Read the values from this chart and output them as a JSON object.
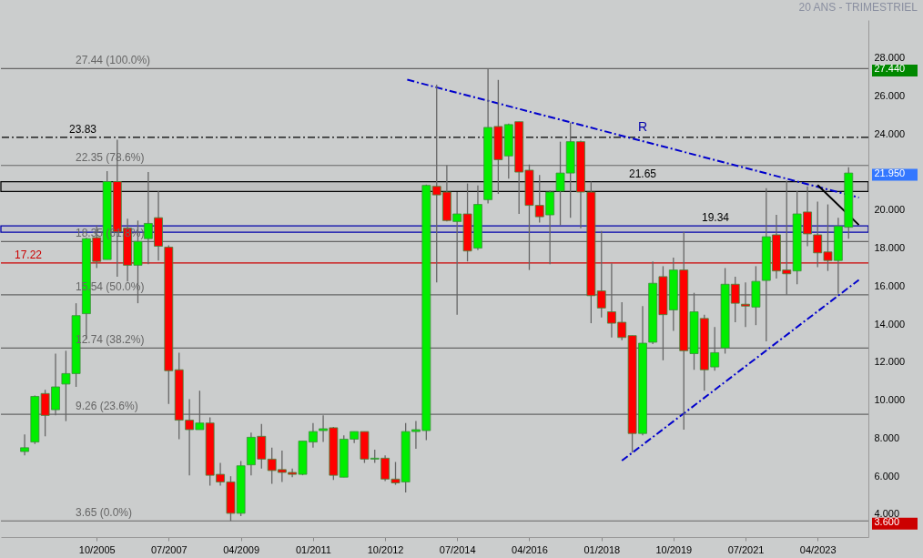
{
  "chart_data": {
    "type": "candlestick",
    "subtitle": "20 ANS - TRIMESTRIEL",
    "x": [
      "2004-01",
      "2004-04",
      "2004-07",
      "2004-10",
      "2005-01",
      "2005-04",
      "2005-07",
      "2005-10",
      "2006-01",
      "2006-04",
      "2006-07",
      "2006-10",
      "2007-01",
      "2007-04",
      "2007-07",
      "2007-10",
      "2008-01",
      "2008-04",
      "2008-07",
      "2008-10",
      "2009-01",
      "2009-04",
      "2009-07",
      "2009-10",
      "2010-01",
      "2010-04",
      "2010-07",
      "2010-10",
      "2011-01",
      "2011-04",
      "2011-07",
      "2011-10",
      "2012-01",
      "2012-04",
      "2012-07",
      "2012-10",
      "2013-01",
      "2013-04",
      "2013-07",
      "2013-10",
      "2014-01",
      "2014-04",
      "2014-07",
      "2014-10",
      "2015-01",
      "2015-04",
      "2015-07",
      "2015-10",
      "2016-01",
      "2016-04",
      "2016-07",
      "2016-10",
      "2017-01",
      "2017-04",
      "2017-07",
      "2017-10",
      "2018-01",
      "2018-04",
      "2018-07",
      "2018-10",
      "2019-01",
      "2019-04",
      "2019-07",
      "2019-10",
      "2020-01",
      "2020-04",
      "2020-07",
      "2020-10",
      "2021-01",
      "2021-04",
      "2021-07",
      "2021-10",
      "2022-01",
      "2022-04",
      "2022-07",
      "2022-10",
      "2023-01",
      "2023-04",
      "2023-07",
      "2023-10",
      "2024-01"
    ],
    "ohlc": [
      [
        7.3,
        8.2,
        7.1,
        7.5
      ],
      [
        7.8,
        10.25,
        7.7,
        10.2
      ],
      [
        10.35,
        10.55,
        8.1,
        9.2
      ],
      [
        9.5,
        12.45,
        9.2,
        10.7
      ],
      [
        10.85,
        12.6,
        8.9,
        11.4
      ],
      [
        11.4,
        15.1,
        10.7,
        14.45
      ],
      [
        14.55,
        18.55,
        13.2,
        18.5
      ],
      [
        18.55,
        19.2,
        16.95,
        17.3
      ],
      [
        17.4,
        22.05,
        17.4,
        21.5
      ],
      [
        21.5,
        23.7,
        16.5,
        18.85
      ],
      [
        19.05,
        19.55,
        16.25,
        17.1
      ],
      [
        17.1,
        19.45,
        15.1,
        18.35
      ],
      [
        18.5,
        22.0,
        17.15,
        19.3
      ],
      [
        19.6,
        21.0,
        17.35,
        18.1
      ],
      [
        18.05,
        18.15,
        9.8,
        11.55
      ],
      [
        11.6,
        12.5,
        7.95,
        8.95
      ],
      [
        8.95,
        10.05,
        6.05,
        8.45
      ],
      [
        8.45,
        10.5,
        8.45,
        8.8
      ],
      [
        8.8,
        9.1,
        5.5,
        6.05
      ],
      [
        6.1,
        6.7,
        5.5,
        5.7
      ],
      [
        5.7,
        6.0,
        3.65,
        4.05
      ],
      [
        4.05,
        6.8,
        3.9,
        6.55
      ],
      [
        6.6,
        8.3,
        6.05,
        8.05
      ],
      [
        8.1,
        8.75,
        6.4,
        6.9
      ],
      [
        6.9,
        7.5,
        5.6,
        6.3
      ],
      [
        6.35,
        7.35,
        5.7,
        6.2
      ],
      [
        6.2,
        6.4,
        5.95,
        6.1
      ],
      [
        6.1,
        7.85,
        6.05,
        7.85
      ],
      [
        7.8,
        8.8,
        7.5,
        8.35
      ],
      [
        8.4,
        9.2,
        7.8,
        8.5
      ],
      [
        8.55,
        8.6,
        5.8,
        6.05
      ],
      [
        5.95,
        8.15,
        5.95,
        7.95
      ],
      [
        7.95,
        8.35,
        7.75,
        8.35
      ],
      [
        8.35,
        8.35,
        6.7,
        6.9
      ],
      [
        6.9,
        7.4,
        6.7,
        6.95
      ],
      [
        6.95,
        7.1,
        5.75,
        5.85
      ],
      [
        5.85,
        6.75,
        5.55,
        5.65
      ],
      [
        5.7,
        8.8,
        5.15,
        8.35
      ],
      [
        8.35,
        8.9,
        7.45,
        8.45
      ],
      [
        8.4,
        21.35,
        7.9,
        21.3
      ],
      [
        21.25,
        26.6,
        16.2,
        20.8
      ],
      [
        20.95,
        22.35,
        19.4,
        19.45
      ],
      [
        19.4,
        20.95,
        14.5,
        19.8
      ],
      [
        19.8,
        21.4,
        17.3,
        17.85
      ],
      [
        18.0,
        21.3,
        17.9,
        20.3
      ],
      [
        20.55,
        27.44,
        20.35,
        24.35
      ],
      [
        24.4,
        26.85,
        20.85,
        22.65
      ],
      [
        22.85,
        24.55,
        21.65,
        24.5
      ],
      [
        24.65,
        24.65,
        19.8,
        22.0
      ],
      [
        22.1,
        22.4,
        16.85,
        20.25
      ],
      [
        20.25,
        21.85,
        19.35,
        19.65
      ],
      [
        19.75,
        21.05,
        17.15,
        20.95
      ],
      [
        21.0,
        23.6,
        19.2,
        21.95
      ],
      [
        21.95,
        24.6,
        19.6,
        23.6
      ],
      [
        23.6,
        23.65,
        19.05,
        20.95
      ],
      [
        20.95,
        21.5,
        14.05,
        15.5
      ],
      [
        15.75,
        18.9,
        14.35,
        14.85
      ],
      [
        14.65,
        17.2,
        13.3,
        14.05
      ],
      [
        14.1,
        15.15,
        13.15,
        13.3
      ],
      [
        13.4,
        13.4,
        7.25,
        8.25
      ],
      [
        8.25,
        14.95,
        8.15,
        13.0
      ],
      [
        13.05,
        17.3,
        12.95,
        16.15
      ],
      [
        16.5,
        17.05,
        12.1,
        14.5
      ],
      [
        14.75,
        17.5,
        13.65,
        16.85
      ],
      [
        16.85,
        18.85,
        8.45,
        12.6
      ],
      [
        12.45,
        15.65,
        11.6,
        14.65
      ],
      [
        14.3,
        14.5,
        10.5,
        11.6
      ],
      [
        11.75,
        13.85,
        11.55,
        12.5
      ],
      [
        12.75,
        16.95,
        12.45,
        16.1
      ],
      [
        16.1,
        16.5,
        14.1,
        15.1
      ],
      [
        15.05,
        16.2,
        13.85,
        14.95
      ],
      [
        14.9,
        17.05,
        13.95,
        16.25
      ],
      [
        16.3,
        21.15,
        13.1,
        18.6
      ],
      [
        18.7,
        19.75,
        16.4,
        16.8
      ],
      [
        16.85,
        21.55,
        15.55,
        16.65
      ],
      [
        16.8,
        21.0,
        16.1,
        19.8
      ],
      [
        19.9,
        21.25,
        18.1,
        18.75
      ],
      [
        18.7,
        20.45,
        17.0,
        17.75
      ],
      [
        17.8,
        20.3,
        16.8,
        17.35
      ],
      [
        17.35,
        19.6,
        15.6,
        19.15
      ],
      [
        19.1,
        22.25,
        18.5,
        21.95
      ]
    ],
    "series": [
      {
        "type": "line",
        "color": "#0000cc",
        "line_style": "dashed",
        "x": [
          "2013-04-15",
          "2024-04-01"
        ],
        "values": [
          26.86,
          20.66
        ]
      },
      {
        "type": "line",
        "color": "#0000cc",
        "line_style": "dashed",
        "x": [
          "2018-07-01",
          "2024-04-01"
        ],
        "values": [
          6.82,
          16.33
        ]
      },
      {
        "type": "line",
        "color": "#000000",
        "line_style": "solid",
        "x": [
          "2023-04-01",
          "2024-04-01"
        ],
        "values": [
          21.32,
          19.22
        ]
      }
    ],
    "xlim": [
      "2003-07-15",
      "2024-05-15"
    ],
    "xticks": [
      {
        "value": "2005-10",
        "label": "10/2005"
      },
      {
        "value": "2007-07",
        "label": "07/2007"
      },
      {
        "value": "2009-04",
        "label": "04/2009"
      },
      {
        "value": "2011-01",
        "label": "01/2011"
      },
      {
        "value": "2012-10",
        "label": "10/2012"
      },
      {
        "value": "2014-07",
        "label": "07/2014"
      },
      {
        "value": "2016-04",
        "label": "04/2016"
      },
      {
        "value": "2018-01",
        "label": "01/2018"
      },
      {
        "value": "2019-10",
        "label": "10/2019"
      },
      {
        "value": "2021-07",
        "label": "07/2021"
      },
      {
        "value": "2023-04",
        "label": "04/2023"
      }
    ],
    "ylim": [
      2.8,
      30.0
    ],
    "yticks": [
      {
        "value": 4,
        "label": "4.000"
      },
      {
        "value": 6,
        "label": "6.000"
      },
      {
        "value": 8,
        "label": "8.000"
      },
      {
        "value": 10,
        "label": "10.000"
      },
      {
        "value": 12,
        "label": "12.000"
      },
      {
        "value": 14,
        "label": "14.000"
      },
      {
        "value": 16,
        "label": "16.000"
      },
      {
        "value": 18,
        "label": "18.000"
      },
      {
        "value": 20,
        "label": "20.000"
      },
      {
        "value": 24,
        "label": "24.000"
      },
      {
        "value": 26,
        "label": "26.000"
      },
      {
        "value": 28,
        "label": "28.000"
      },
      {
        "value": 27.44,
        "label": "27.440"
      },
      {
        "value": 21.95,
        "label": "21.950"
      },
      {
        "value": 3.6,
        "label": "3.600"
      }
    ],
    "ref_lines": [
      {
        "axis": "y",
        "value": 27.44,
        "label": "27.44  (100.0%)",
        "color": "#666666",
        "line_style": "solid"
      },
      {
        "axis": "y",
        "value": 23.83,
        "label": "23.83",
        "color": "#000000",
        "line_style": "dashed"
      },
      {
        "axis": "y",
        "value": 22.35,
        "label": "22.35  (78.6%)",
        "color": "#666666",
        "line_style": "solid"
      },
      {
        "axis": "y",
        "value": 18.35,
        "label": "18.35  (61.8%)",
        "color": "#666666",
        "line_style": "solid"
      },
      {
        "axis": "y",
        "value": 17.22,
        "label": "17.22",
        "color": "#cc0000",
        "line_style": "solid"
      },
      {
        "axis": "y",
        "value": 15.54,
        "label": "15.54  (50.0%)",
        "color": "#666666",
        "line_style": "solid"
      },
      {
        "axis": "y",
        "value": 12.74,
        "label": "12.74  (38.2%)",
        "color": "#666666",
        "line_style": "solid"
      },
      {
        "axis": "y",
        "value": 9.26,
        "label": "9.26  (23.6%)",
        "color": "#666666",
        "line_style": "solid"
      },
      {
        "axis": "y",
        "value": 3.65,
        "label": "3.65  (0.0%)",
        "color": "#666666",
        "line_style": "solid"
      }
    ],
    "bands": [
      {
        "axis": "y",
        "from": 20.98,
        "to": 21.49,
        "label": "21.65",
        "color": "#000000"
      },
      {
        "axis": "y",
        "from": 18.84,
        "to": 19.17,
        "label": "19.34",
        "color": "#0000aa"
      }
    ],
    "annotations": [
      "R"
    ],
    "grid": false
  }
}
